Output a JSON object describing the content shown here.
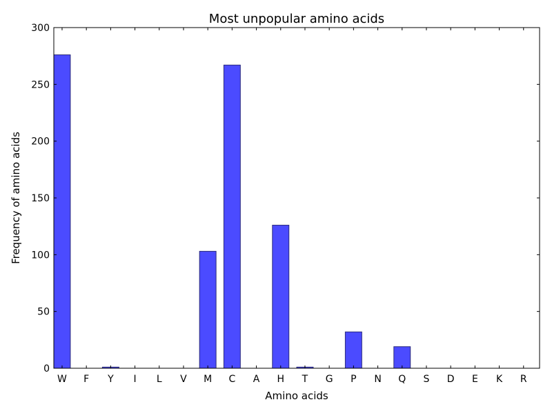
{
  "chart_data": {
    "type": "bar",
    "title": "Most unpopular amino acids",
    "xlabel": "Amino acids",
    "ylabel": "Frequency of amino acids",
    "categories": [
      "W",
      "F",
      "Y",
      "I",
      "L",
      "V",
      "M",
      "C",
      "A",
      "H",
      "T",
      "G",
      "P",
      "N",
      "Q",
      "S",
      "D",
      "E",
      "K",
      "R"
    ],
    "values": [
      276,
      0,
      1,
      0,
      0,
      0,
      103,
      267,
      0,
      126,
      1,
      0,
      32,
      0,
      19,
      0,
      0,
      0,
      0,
      0
    ],
    "ylim": [
      0,
      300
    ],
    "yticks": [
      0,
      50,
      100,
      150,
      200,
      250,
      300
    ],
    "grid": false,
    "bar_color": "#4b4bff",
    "bar_edge_color": "#2a2a7a"
  }
}
